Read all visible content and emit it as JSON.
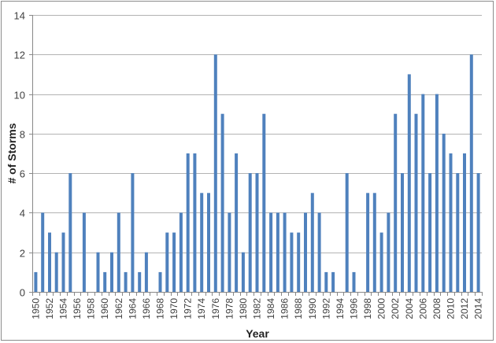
{
  "chart_data": {
    "type": "bar",
    "title": "",
    "xlabel": "Year",
    "ylabel": "# of Storms",
    "ylim": [
      0,
      14
    ],
    "yticks": [
      0,
      2,
      4,
      6,
      8,
      10,
      12,
      14
    ],
    "grid": true,
    "legend": "none",
    "bar_color": "#4f81bd",
    "categories": [
      "1950",
      "1951",
      "1952",
      "1953",
      "1954",
      "1955",
      "1956",
      "1957",
      "1958",
      "1959",
      "1960",
      "1961",
      "1962",
      "1963",
      "1964",
      "1965",
      "1966",
      "1967",
      "1968",
      "1969",
      "1970",
      "1971",
      "1972",
      "1973",
      "1974",
      "1975",
      "1976",
      "1977",
      "1978",
      "1979",
      "1980",
      "1981",
      "1982",
      "1983",
      "1984",
      "1985",
      "1986",
      "1987",
      "1988",
      "1989",
      "1990",
      "1991",
      "1992",
      "1993",
      "1994",
      "1995",
      "1996",
      "1997",
      "1998",
      "1999",
      "2000",
      "2001",
      "2002",
      "2003",
      "2004",
      "2005",
      "2006",
      "2007",
      "2008",
      "2009",
      "2010",
      "2011",
      "2012",
      "2013",
      "2014"
    ],
    "values": [
      1,
      4,
      3,
      2,
      3,
      6,
      0,
      4,
      0,
      2,
      1,
      2,
      4,
      1,
      6,
      1,
      2,
      0,
      1,
      3,
      3,
      4,
      7,
      7,
      5,
      5,
      12,
      9,
      4,
      7,
      2,
      6,
      6,
      9,
      4,
      4,
      4,
      3,
      3,
      4,
      5,
      4,
      1,
      1,
      0,
      6,
      1,
      0,
      5,
      5,
      3,
      4,
      9,
      6,
      11,
      9,
      10,
      6,
      10,
      8,
      7,
      6,
      7,
      12,
      6
    ],
    "xtick_labels": [
      "1950",
      "1952",
      "1954",
      "1956",
      "1958",
      "1960",
      "1962",
      "1964",
      "1966",
      "1968",
      "1970",
      "1972",
      "1974",
      "1976",
      "1978",
      "1980",
      "1982",
      "1984",
      "1986",
      "1988",
      "1990",
      "1992",
      "1994",
      "1996",
      "1998",
      "2000",
      "2002",
      "2004",
      "2006",
      "2008",
      "2010",
      "2012",
      "2014"
    ]
  }
}
